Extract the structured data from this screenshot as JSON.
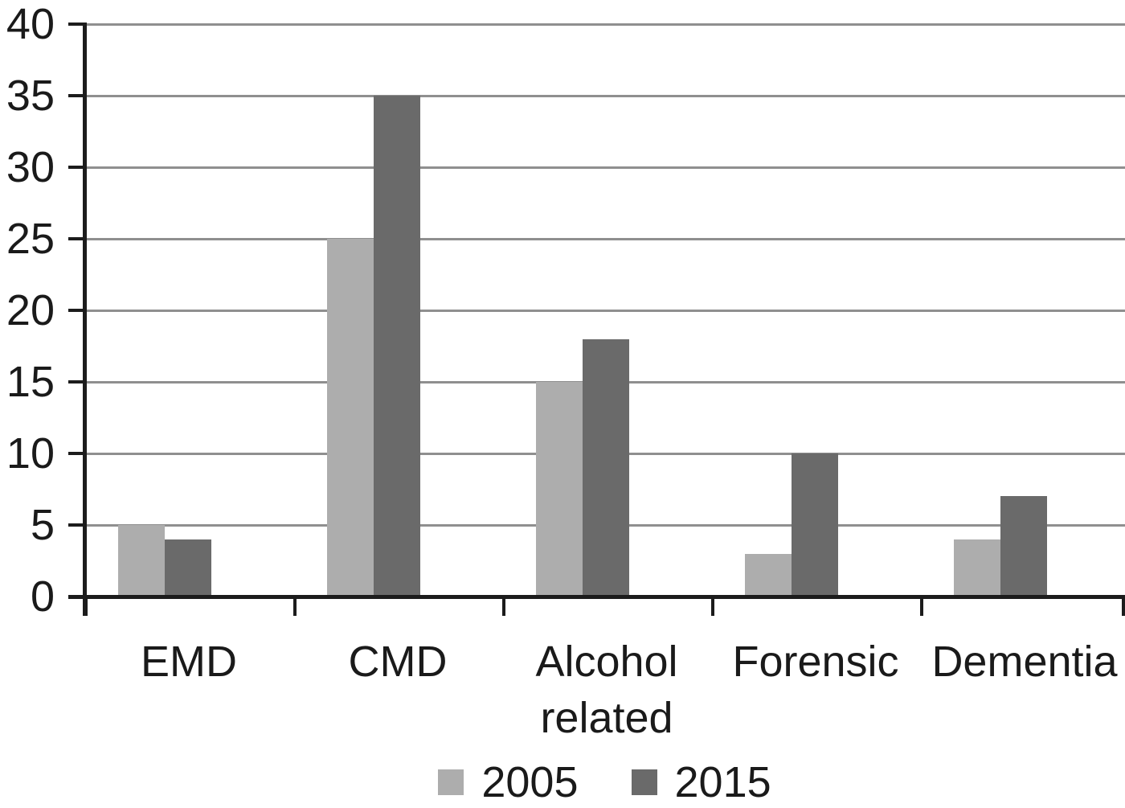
{
  "chart_data": {
    "type": "bar",
    "categories": [
      "EMD",
      "CMD",
      "Alcohol related",
      "Forensic",
      "Dementia"
    ],
    "series": [
      {
        "name": "2005",
        "color": "#adadad",
        "values": [
          5,
          25,
          15,
          3,
          4
        ]
      },
      {
        "name": "2015",
        "color": "#6a6a6a",
        "values": [
          4,
          35,
          18,
          10,
          7
        ]
      }
    ],
    "title": "",
    "xlabel": "",
    "ylabel": "",
    "ylim": [
      0,
      40
    ],
    "yticks": [
      0,
      5,
      10,
      15,
      20,
      25,
      30,
      35,
      40
    ],
    "grid": true,
    "legend_position": "bottom"
  },
  "colors": {
    "grid": "#8f8f8f",
    "axis": "#1c1c1c",
    "text": "#1a1a1a",
    "background": "#ffffff"
  }
}
